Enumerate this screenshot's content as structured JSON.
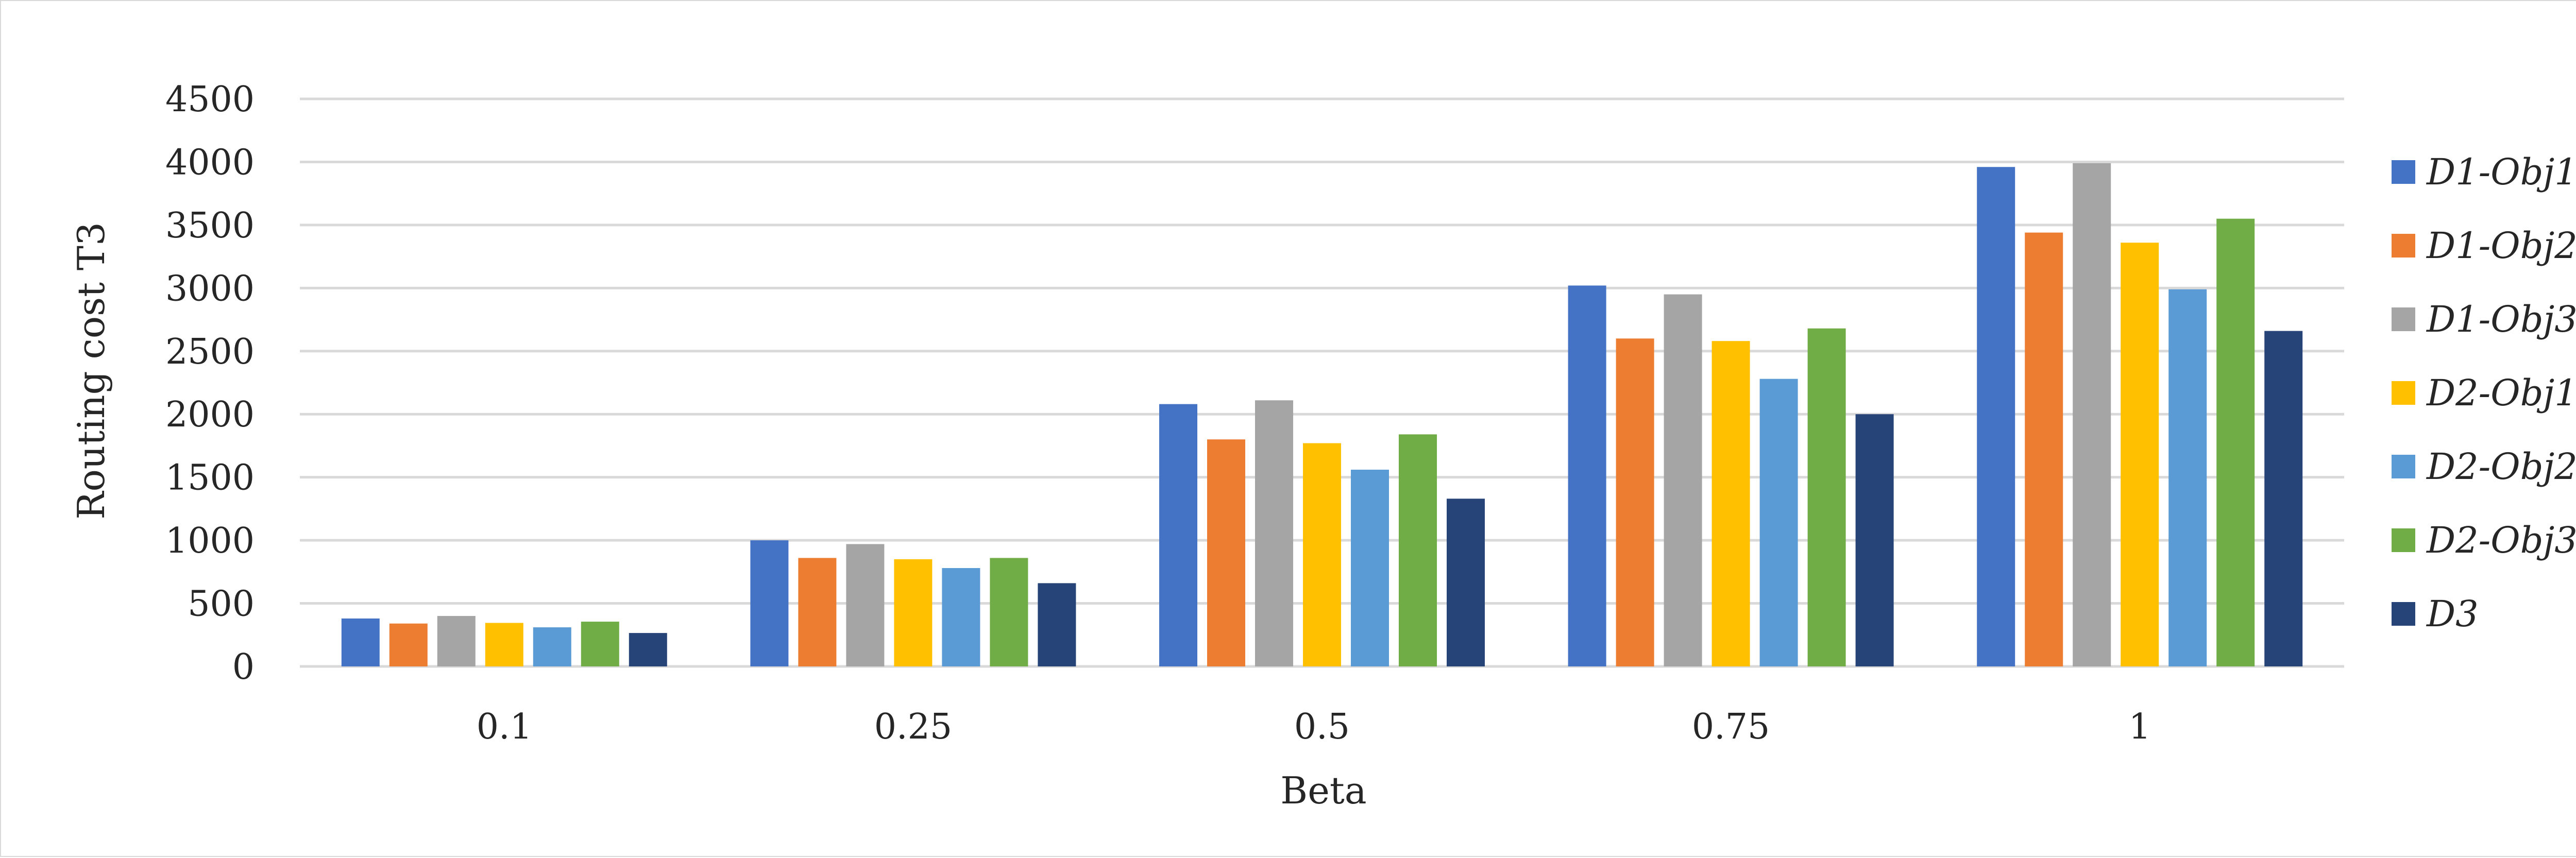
{
  "chart_data": {
    "type": "bar",
    "title": "",
    "xlabel": "Beta",
    "ylabel": "Routing cost T3",
    "categories": [
      "0.1",
      "0.25",
      "0.5",
      "0.75",
      "1"
    ],
    "ylim": [
      0,
      4500
    ],
    "yticks": [
      0,
      500,
      1000,
      1500,
      2000,
      2500,
      3000,
      3500,
      4000,
      4500
    ],
    "grid": true,
    "legend_position": "right",
    "series": [
      {
        "name": "D1-Obj1",
        "color": "#4472C4",
        "values": [
          380,
          1000,
          2080,
          3020,
          3960
        ]
      },
      {
        "name": "D1-Obj2",
        "color": "#ED7D31",
        "values": [
          340,
          860,
          1800,
          2600,
          3440
        ]
      },
      {
        "name": "D1-Obj3",
        "color": "#A5A5A5",
        "values": [
          400,
          970,
          2110,
          2950,
          3990
        ]
      },
      {
        "name": "D2-Obj1",
        "color": "#FFC000",
        "values": [
          345,
          850,
          1770,
          2580,
          3360
        ]
      },
      {
        "name": "D2-Obj2",
        "color": "#5B9BD5",
        "values": [
          310,
          780,
          1560,
          2280,
          2990
        ]
      },
      {
        "name": "D2-Obj3",
        "color": "#70AD47",
        "values": [
          355,
          860,
          1840,
          2680,
          3550
        ]
      },
      {
        "name": "D3",
        "color": "#264478",
        "values": [
          265,
          660,
          1330,
          2000,
          2660
        ]
      }
    ]
  }
}
